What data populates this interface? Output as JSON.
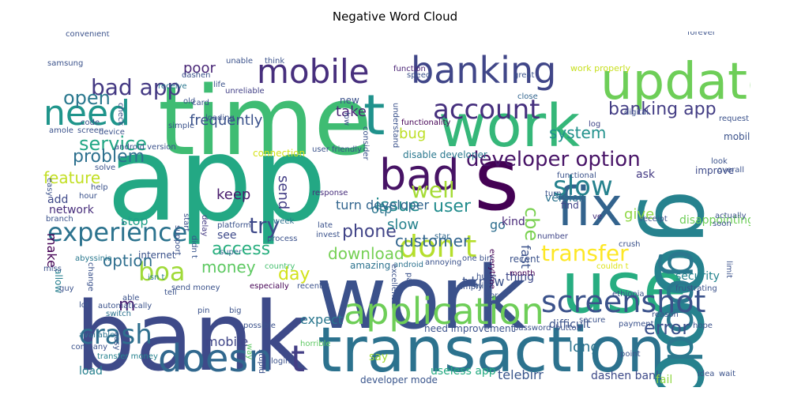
{
  "chart_data": {
    "type": "wordcloud",
    "title": "Negative Word Cloud",
    "words": [
      {
        "text": "app",
        "color": "#23a884"
      },
      {
        "text": "bank",
        "color": "#3e4a89"
      },
      {
        "text": "work",
        "color": "#3b518b"
      },
      {
        "text": "time",
        "color": "#3fbc73"
      },
      {
        "text": "work",
        "color": "#35b779"
      },
      {
        "text": "transaction",
        "color": "#2c728e"
      },
      {
        "text": "use",
        "color": "#27ad81"
      },
      {
        "text": "good",
        "color": "#26828e"
      },
      {
        "text": "update",
        "color": "#6ece58"
      },
      {
        "text": "s",
        "color": "#440154"
      },
      {
        "text": "fix",
        "color": "#33638d"
      },
      {
        "text": "good",
        "color": "#2a788e"
      },
      {
        "text": "bad",
        "color": "#471365"
      },
      {
        "text": "banking",
        "color": "#404688"
      },
      {
        "text": "mobile",
        "color": "#472f7d"
      },
      {
        "text": "need",
        "color": "#1f958b"
      },
      {
        "text": "t",
        "color": "#20928c"
      },
      {
        "text": "application",
        "color": "#6ece58"
      },
      {
        "text": "doesn",
        "color": "#31688e"
      },
      {
        "text": "t",
        "color": "#433e85"
      },
      {
        "text": "experience",
        "color": "#2c738e"
      },
      {
        "text": "screenshot",
        "color": "#3b528b"
      },
      {
        "text": "don t",
        "color": "#b5de2b"
      },
      {
        "text": "crash",
        "color": "#2e6f8e"
      },
      {
        "text": "slow",
        "color": "#26828e"
      },
      {
        "text": "account",
        "color": "#46307e"
      },
      {
        "text": "boa",
        "color": "#a0da39"
      },
      {
        "text": "developer option",
        "color": "#481467"
      },
      {
        "text": "transfer",
        "color": "#fde725"
      },
      {
        "text": "well",
        "color": "#a5db36"
      },
      {
        "text": "try",
        "color": "#3e4989"
      },
      {
        "text": "bad app",
        "color": "#443983"
      },
      {
        "text": "service",
        "color": "#22a785"
      },
      {
        "text": "banking app",
        "color": "#433d84"
      },
      {
        "text": "open",
        "color": "#2a788e"
      },
      {
        "text": "phone",
        "color": "#414487"
      },
      {
        "text": "access",
        "color": "#29af7f"
      },
      {
        "text": "issue",
        "color": "#238a8d"
      },
      {
        "text": "problem",
        "color": "#2d708e"
      },
      {
        "text": "customer",
        "color": "#32658e"
      },
      {
        "text": "cbe",
        "color": "#7ad151"
      },
      {
        "text": "download",
        "color": "#75d054"
      },
      {
        "text": "error",
        "color": "#3b528b"
      },
      {
        "text": "system",
        "color": "#21918c"
      },
      {
        "text": "m",
        "color": "#481f70"
      },
      {
        "text": "user",
        "color": "#228c8d"
      },
      {
        "text": "day",
        "color": "#d2e21b"
      },
      {
        "text": "feature",
        "color": "#c2df23"
      },
      {
        "text": "money",
        "color": "#5ec962"
      },
      {
        "text": "option",
        "color": "#2e6e8e"
      },
      {
        "text": "long",
        "color": "#2c738e"
      },
      {
        "text": "give",
        "color": "#8fd744"
      },
      {
        "text": "slow",
        "color": "#26828e"
      },
      {
        "text": "take",
        "color": "#482475"
      },
      {
        "text": "poor",
        "color": "#482576"
      },
      {
        "text": "frequently",
        "color": "#3b528b"
      },
      {
        "text": "keep",
        "color": "#481a6c"
      },
      {
        "text": "send",
        "color": "#433e85"
      },
      {
        "text": "bug",
        "color": "#bddf26"
      },
      {
        "text": "expect",
        "color": "#2a778e"
      },
      {
        "text": "t know",
        "color": "#3b528b"
      },
      {
        "text": "ask",
        "color": "#443a83"
      },
      {
        "text": "security",
        "color": "#25848e"
      },
      {
        "text": "make",
        "color": "#440154"
      },
      {
        "text": "mobile",
        "color": "#404688"
      },
      {
        "text": "telebirr",
        "color": "#39568c"
      },
      {
        "text": "dashen bank",
        "color": "#3e4a89"
      },
      {
        "text": "useless app",
        "color": "#25ab82"
      },
      {
        "text": "thing",
        "color": "#3e4989"
      },
      {
        "text": "disappointing",
        "color": "#6ece58"
      },
      {
        "text": "difficult",
        "color": "#3b528b"
      },
      {
        "text": "turn developer",
        "color": "#32658e"
      },
      {
        "text": "go",
        "color": "#2e6e8e"
      },
      {
        "text": "load",
        "color": "#27808e"
      },
      {
        "text": "see",
        "color": "#3e4a89"
      },
      {
        "text": "otp",
        "color": "#2b748e"
      },
      {
        "text": "stop",
        "color": "#1f9f88"
      },
      {
        "text": "add",
        "color": "#3e4989"
      },
      {
        "text": "network",
        "color": "#472d7b"
      },
      {
        "text": "improve",
        "color": "#3e4a89"
      },
      {
        "text": "version",
        "color": "#2c728e"
      },
      {
        "text": "fast",
        "color": "#3b528b"
      },
      {
        "text": "say",
        "color": "#a0da39"
      },
      {
        "text": "fail",
        "color": "#90d743"
      },
      {
        "text": "allow",
        "color": "#277f8e"
      },
      {
        "text": "need improvement",
        "color": "#3b528b"
      },
      {
        "text": "developer mode",
        "color": "#39558c"
      },
      {
        "text": "disable developer",
        "color": "#2a788e"
      },
      {
        "text": "connection",
        "color": "#d5e21a"
      },
      {
        "text": "work properly",
        "color": "#c8e020"
      },
      {
        "text": "user friendly",
        "color": "#3b528b"
      },
      {
        "text": "functionality",
        "color": "#440154"
      },
      {
        "text": "function",
        "color": "#482173"
      },
      {
        "text": "new",
        "color": "#3b528b"
      },
      {
        "text": "unreliable",
        "color": "#424086"
      },
      {
        "text": "receive",
        "color": "#2a788e"
      },
      {
        "text": "close",
        "color": "#32658e"
      },
      {
        "text": "mobile",
        "color": "#3b528b"
      },
      {
        "text": "log",
        "color": "#404688"
      },
      {
        "text": "functional",
        "color": "#3b528b"
      },
      {
        "text": "find",
        "color": "#414487"
      },
      {
        "text": "turn",
        "color": "#3b528b"
      },
      {
        "text": "kind",
        "color": "#482878"
      },
      {
        "text": "ve",
        "color": "#472f7d"
      },
      {
        "text": "receipt",
        "color": "#3b528b"
      },
      {
        "text": "number",
        "color": "#404688"
      },
      {
        "text": "crush",
        "color": "#3b528b"
      },
      {
        "text": "couldn t",
        "color": "#dde318"
      },
      {
        "text": "month",
        "color": "#440154"
      },
      {
        "text": "android",
        "color": "#2c728e"
      },
      {
        "text": "recent",
        "color": "#3b528b"
      },
      {
        "text": "star",
        "color": "#31688e"
      },
      {
        "text": "everytime",
        "color": "#440154"
      },
      {
        "text": "huge",
        "color": "#3b528b"
      },
      {
        "text": "nice",
        "color": "#38588c"
      },
      {
        "text": "amazing",
        "color": "#2c728e"
      },
      {
        "text": "country",
        "color": "#46c06f"
      },
      {
        "text": "process",
        "color": "#3b528b"
      },
      {
        "text": "recently",
        "color": "#3b528b"
      },
      {
        "text": "especially",
        "color": "#440154"
      },
      {
        "text": "super",
        "color": "#31688e"
      },
      {
        "text": "week",
        "color": "#2c728e"
      },
      {
        "text": "invest",
        "color": "#3b528b"
      },
      {
        "text": "late",
        "color": "#3b528b"
      },
      {
        "text": "response",
        "color": "#472d7b"
      },
      {
        "text": "support",
        "color": "#3b528b"
      },
      {
        "text": "start",
        "color": "#3b528b"
      },
      {
        "text": "didn t",
        "color": "#39558c"
      },
      {
        "text": "delay",
        "color": "#443a83"
      },
      {
        "text": "platform",
        "color": "#3b528b"
      },
      {
        "text": "internet",
        "color": "#3b528b"
      },
      {
        "text": "abyssinia",
        "color": "#2a788e"
      },
      {
        "text": "change",
        "color": "#3b528b"
      },
      {
        "text": "isn t",
        "color": "#2a788e"
      },
      {
        "text": "send money",
        "color": "#3b528b"
      },
      {
        "text": "able",
        "color": "#3b528b"
      },
      {
        "text": "tell",
        "color": "#3b528b"
      },
      {
        "text": "automatically",
        "color": "#3b528b"
      },
      {
        "text": "pin",
        "color": "#3b528b"
      },
      {
        "text": "big",
        "color": "#3b528b"
      },
      {
        "text": "switch",
        "color": "#2c728e"
      },
      {
        "text": "possible",
        "color": "#3b528b"
      },
      {
        "text": "way",
        "color": "#5ec962"
      },
      {
        "text": "horrible",
        "color": "#5ec962"
      },
      {
        "text": "login",
        "color": "#3b528b"
      },
      {
        "text": "stupid",
        "color": "#3b528b"
      },
      {
        "text": "company",
        "color": "#3b528b"
      },
      {
        "text": "transfer money",
        "color": "#26828e"
      },
      {
        "text": "available",
        "color": "#2c728e"
      },
      {
        "text": "lot",
        "color": "#3b528b"
      },
      {
        "text": "easy",
        "color": "#3b528b"
      },
      {
        "text": "guy",
        "color": "#3b528b"
      },
      {
        "text": "miss",
        "color": "#3b528b"
      },
      {
        "text": "branch",
        "color": "#3b528b"
      },
      {
        "text": "hour",
        "color": "#3b528b"
      },
      {
        "text": "help",
        "color": "#3b528b"
      },
      {
        "text": "solve",
        "color": "#3b528b"
      },
      {
        "text": "easy",
        "color": "#3b528b"
      },
      {
        "text": "screen",
        "color": "#3b528b"
      },
      {
        "text": "amole",
        "color": "#3b528b"
      },
      {
        "text": "code",
        "color": "#3b528b"
      },
      {
        "text": "device",
        "color": "#3b528b"
      },
      {
        "text": "android version",
        "color": "#3b528b"
      },
      {
        "text": "loading",
        "color": "#3b528b"
      },
      {
        "text": "simple",
        "color": "#3b528b"
      },
      {
        "text": "old",
        "color": "#3b528b"
      },
      {
        "text": "dashen",
        "color": "#3b528b"
      },
      {
        "text": "unable",
        "color": "#3b528b"
      },
      {
        "text": "card",
        "color": "#3b528b"
      },
      {
        "text": "samsung",
        "color": "#3b528b"
      },
      {
        "text": "check",
        "color": "#3b528b"
      },
      {
        "text": "convenient",
        "color": "#3b528b"
      },
      {
        "text": "life",
        "color": "#3b528b"
      },
      {
        "text": "think",
        "color": "#3b528b"
      },
      {
        "text": "understand",
        "color": "#3b528b"
      },
      {
        "text": "speed",
        "color": "#3b528b"
      },
      {
        "text": "low",
        "color": "#3b528b"
      },
      {
        "text": "great",
        "color": "#3b528b"
      },
      {
        "text": "forever",
        "color": "#3b528b"
      },
      {
        "text": "digital",
        "color": "#3b528b"
      },
      {
        "text": "request",
        "color": "#3b528b"
      },
      {
        "text": "look",
        "color": "#3b528b"
      },
      {
        "text": "overall",
        "color": "#3b528b"
      },
      {
        "text": "actually",
        "color": "#3b528b"
      },
      {
        "text": "soon",
        "color": "#3b528b"
      },
      {
        "text": "limit",
        "color": "#3b528b"
      },
      {
        "text": "frustrating",
        "color": "#3b528b"
      },
      {
        "text": "ethiopia",
        "color": "#3b528b"
      },
      {
        "text": "reason",
        "color": "#3b528b"
      },
      {
        "text": "hope",
        "color": "#3b528b"
      },
      {
        "text": "payment",
        "color": "#3b528b"
      },
      {
        "text": "point",
        "color": "#3b528b"
      },
      {
        "text": "secure",
        "color": "#3b528b"
      },
      {
        "text": "button",
        "color": "#3b528b"
      },
      {
        "text": "password",
        "color": "#3b528b"
      },
      {
        "text": "wor",
        "color": "#3b528b"
      },
      {
        "text": "simply",
        "color": "#3b528b"
      },
      {
        "text": "annoying",
        "color": "#3b528b"
      },
      {
        "text": "pay",
        "color": "#3b528b"
      },
      {
        "text": "excellent",
        "color": "#3b528b"
      },
      {
        "text": "idea",
        "color": "#3b528b"
      },
      {
        "text": "wait",
        "color": "#3b528b"
      },
      {
        "text": "consider",
        "color": "#3b528b"
      },
      {
        "text": "one birr",
        "color": "#3b528b"
      },
      {
        "text": "know",
        "color": "#3b528b"
      }
    ]
  }
}
